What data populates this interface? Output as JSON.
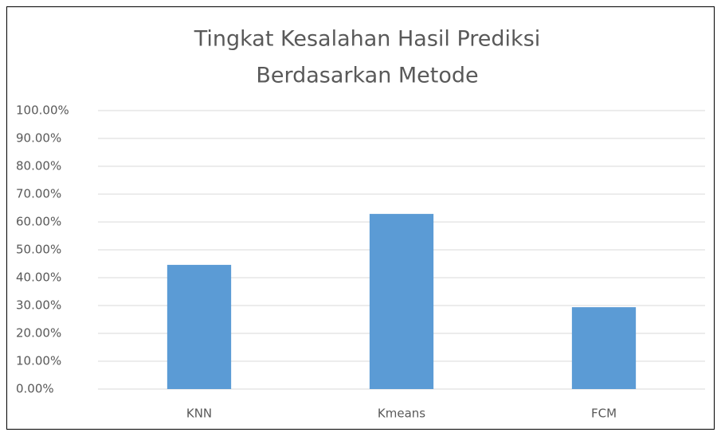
{
  "chart_data": {
    "type": "bar",
    "title": [
      "Tingkat Kesalahan Hasil Prediksi",
      "Berdasarkan Metode"
    ],
    "categories": [
      "KNN",
      "Kmeans",
      "FCM"
    ],
    "values": [
      44.6,
      62.9,
      29.4
    ],
    "color": "#5b9bd5",
    "ylim": [
      0,
      100
    ],
    "yticks": [
      {
        "value": 0,
        "label": "0.00%"
      },
      {
        "value": 10,
        "label": "10.00%"
      },
      {
        "value": 20,
        "label": "20.00%"
      },
      {
        "value": 30,
        "label": "30.00%"
      },
      {
        "value": 40,
        "label": "40.00%"
      },
      {
        "value": 50,
        "label": "50.00%"
      },
      {
        "value": 60,
        "label": "60.00%"
      },
      {
        "value": 70,
        "label": "70.00%"
      },
      {
        "value": 80,
        "label": "80.00%"
      },
      {
        "value": 90,
        "label": "90.00%"
      },
      {
        "value": 100,
        "label": "100.00%"
      }
    ],
    "grid": true
  }
}
